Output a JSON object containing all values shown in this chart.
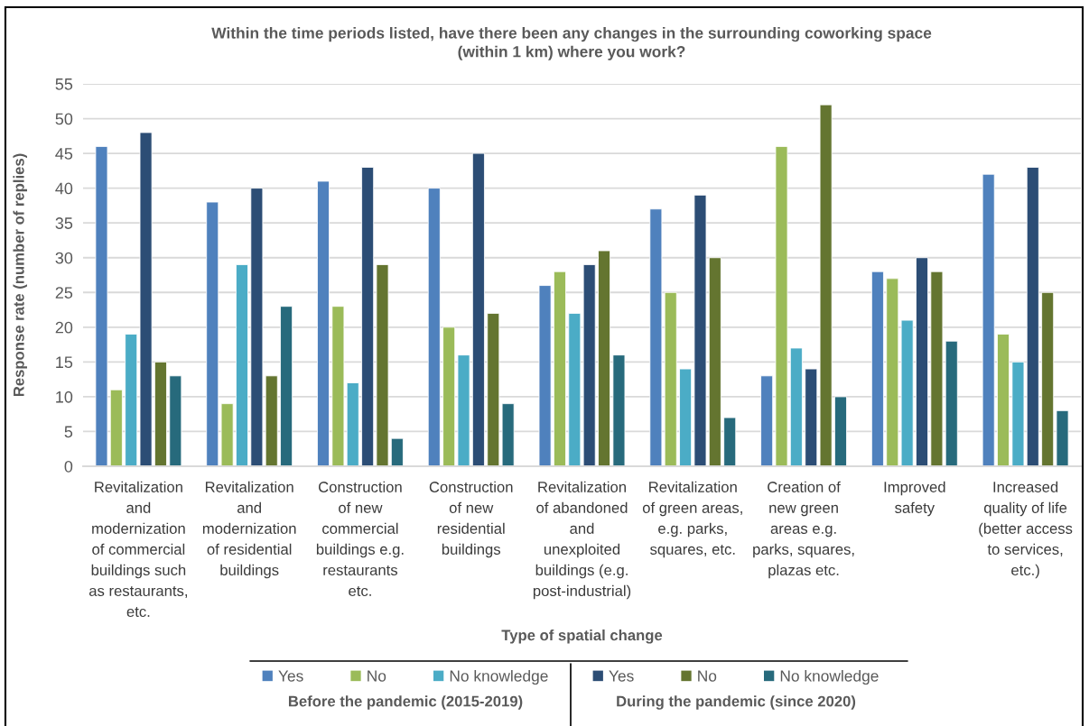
{
  "chart_data": {
    "type": "bar",
    "title": "Within the time periods listed, have there been any changes in the surrounding coworking space\n(within 1 km) where you work?",
    "xlabel": "Type of spatial change",
    "ylabel": "Response rate (number of replies)",
    "legend_title": [
      "Before the pandemic (2015-2019)",
      "During the pandemic (since 2020)"
    ],
    "categories": [
      "Revitalization\nand\nmodernization\nof commercial\nbuildings such\nas restaurants,\netc.",
      "Revitalization\nand\nmodernization\nof residential\nbuildings",
      "Construction\nof new\ncommercial\nbuildings e.g.\nrestaurants\netc.",
      "Construction\nof new\nresidential\nbuildings",
      "Revitalization\nof abandoned\nand\nunexploited\nbuildings (e.g.\npost-industrial)",
      "Revitalization\nof green areas,\ne.g. parks,\nsquares, etc.",
      "Creation of\nnew green\nareas e.g.\nparks, squares,\nplazas etc.",
      "Improved\nsafety",
      "Increased\nquality of life\n(better access\nto services,\netc.)"
    ],
    "series": [
      {
        "name": "Yes",
        "color": "#4f81bd",
        "values": [
          46,
          38,
          41,
          40,
          26,
          37,
          13,
          28,
          42
        ]
      },
      {
        "name": "No",
        "color": "#9bbb59",
        "values": [
          11,
          9,
          23,
          20,
          28,
          25,
          46,
          27,
          19
        ]
      },
      {
        "name": "No knowledge",
        "color": "#4bacc6",
        "values": [
          19,
          29,
          12,
          16,
          22,
          14,
          17,
          21,
          15
        ]
      },
      {
        "name": "Yes",
        "color": "#2c4d75",
        "values": [
          48,
          40,
          43,
          45,
          29,
          39,
          14,
          30,
          43
        ]
      },
      {
        "name": "No",
        "color": "#647530",
        "values": [
          15,
          13,
          29,
          22,
          31,
          30,
          52,
          28,
          25
        ]
      },
      {
        "name": "No knowledge",
        "color": "#276a7c",
        "values": [
          13,
          23,
          4,
          9,
          16,
          7,
          10,
          18,
          8
        ]
      }
    ],
    "ylim": [
      0,
      55
    ],
    "yticks": [
      0,
      5,
      10,
      15,
      20,
      25,
      30,
      35,
      40,
      45,
      50,
      55
    ],
    "grid": "y",
    "legend": "bottom"
  }
}
